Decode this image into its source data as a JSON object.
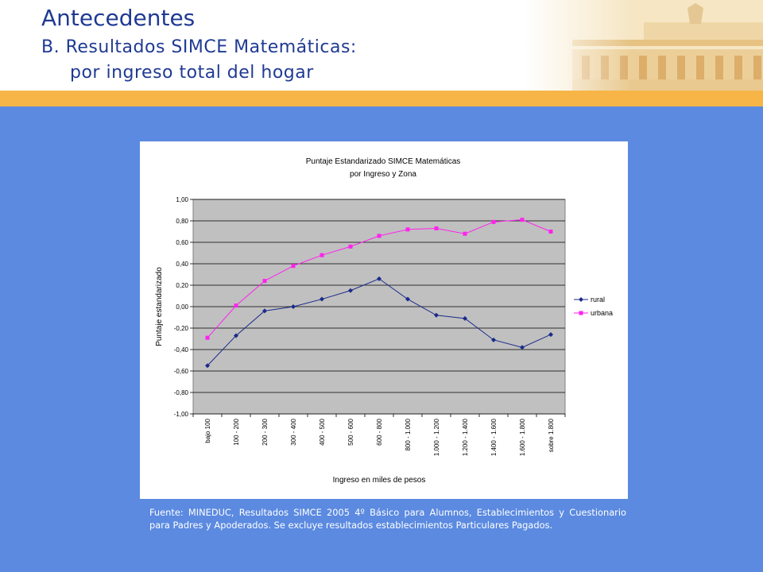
{
  "slide": {
    "title": "Antecedentes",
    "subtitle_line1": "B. Resultados SIMCE Matemáticas:",
    "subtitle_line2": "por ingreso total del hogar",
    "source_note": "Fuente: MINEDUC, Resultados SIMCE 2005 4º Básico para Alumnos, Establecimientos y Cuestionario para Padres y Apoderados. Se excluye resultados establecimientos Particulares Pagados.",
    "colors": {
      "background": "#5b8ae0",
      "accent_band": "#f7b548",
      "title_text": "#1f3a93"
    }
  },
  "chart_data": {
    "type": "line",
    "title": "Puntaje Estandarizado SIMCE Matemáticas",
    "subtitle": "por Ingreso y Zona",
    "xlabel": "Ingreso en miles de pesos",
    "ylabel": "Puntaje estandarizado",
    "ylim": [
      -1.0,
      1.0
    ],
    "yticks": [
      "1,00",
      "0,80",
      "0,60",
      "0,40",
      "0,20",
      "0,00",
      "-0,20",
      "-0,40",
      "-0,60",
      "-0,80",
      "-1,00"
    ],
    "categories": [
      "bajo 100",
      "100 - 200",
      "200 - 300",
      "300 - 400",
      "400 - 500",
      "500 - 600",
      "600 - 800",
      "800 - 1.000",
      "1.000 - 1.200",
      "1.200 - 1.400",
      "1.400 - 1.600",
      "1.600 - 1.800",
      "sobre 1.800"
    ],
    "series": [
      {
        "name": "rural",
        "color": "#1a2a8a",
        "marker": "diamond",
        "values": [
          -0.55,
          -0.27,
          -0.04,
          0.0,
          0.07,
          0.15,
          0.26,
          0.07,
          -0.08,
          -0.11,
          -0.31,
          -0.38,
          -0.26
        ]
      },
      {
        "name": "urbana",
        "color": "#ff22ee",
        "marker": "square",
        "values": [
          -0.29,
          0.01,
          0.24,
          0.38,
          0.48,
          0.56,
          0.66,
          0.72,
          0.73,
          0.68,
          0.79,
          0.81,
          0.7
        ]
      }
    ],
    "grid": true,
    "plot_background": "#c0c0c0",
    "legend_position": "right"
  }
}
